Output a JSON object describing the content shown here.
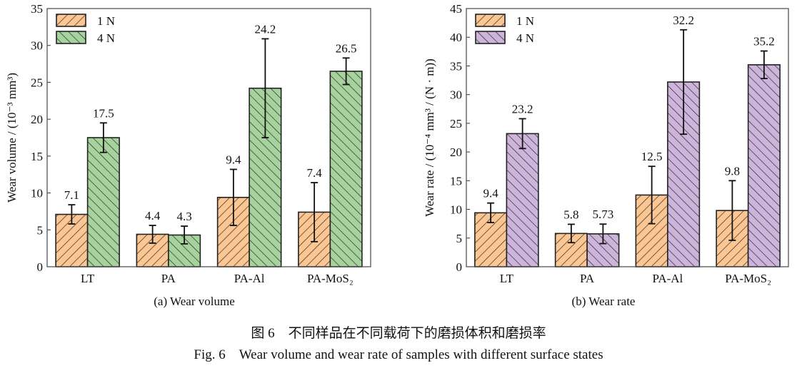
{
  "chart_data": [
    {
      "type": "bar",
      "title": "(a) Wear volume",
      "ylabel": "Wear volume / (10⁻³ mm³)",
      "xlabel": "",
      "ylim": [
        0,
        35
      ],
      "yticks": [
        0,
        5,
        10,
        15,
        20,
        25,
        30,
        35
      ],
      "categories": [
        "LT",
        "PA",
        "PA-Al",
        "PA-MoS₂"
      ],
      "legend_position": "top-left",
      "grid": false,
      "series": [
        {
          "name": "1 N",
          "color": "#fcc693",
          "hatch": "forward",
          "values": [
            7.1,
            4.4,
            9.4,
            7.4
          ],
          "labels": [
            "7.1",
            "4.4",
            "9.4",
            "7.4"
          ],
          "errors": [
            1.3,
            1.2,
            3.8,
            4.0
          ]
        },
        {
          "name": "4 N",
          "color": "#a6d39d",
          "hatch": "backward",
          "values": [
            17.5,
            4.3,
            24.2,
            26.5
          ],
          "labels": [
            "17.5",
            "4.3",
            "24.2",
            "26.5"
          ],
          "errors": [
            2.0,
            1.2,
            6.7,
            1.8
          ]
        }
      ]
    },
    {
      "type": "bar",
      "title": "(b) Wear rate",
      "ylabel": "Wear rate / (10⁻⁴ mm³ / (N · m))",
      "xlabel": "",
      "ylim": [
        0,
        45
      ],
      "yticks": [
        0,
        5,
        10,
        15,
        20,
        25,
        30,
        35,
        40,
        45
      ],
      "categories": [
        "LT",
        "PA",
        "PA-Al",
        "PA-MoS₂"
      ],
      "legend_position": "top-left",
      "grid": false,
      "series": [
        {
          "name": "1 N",
          "color": "#fcc693",
          "hatch": "forward",
          "values": [
            9.4,
            5.8,
            12.5,
            9.8
          ],
          "labels": [
            "9.4",
            "5.8",
            "12.5",
            "9.8"
          ],
          "errors": [
            1.7,
            1.6,
            5.0,
            5.2
          ]
        },
        {
          "name": "4 N",
          "color": "#cdb4da",
          "hatch": "backward",
          "values": [
            23.2,
            5.73,
            32.2,
            35.2
          ],
          "labels": [
            "23.2",
            "5.73",
            "32.2",
            "35.2"
          ],
          "errors": [
            2.6,
            1.7,
            9.1,
            2.4
          ]
        }
      ]
    }
  ],
  "caption": {
    "zh": "图 6　不同样品在不同载荷下的磨损体积和磨损率",
    "en": "Fig. 6　Wear volume and wear rate of samples with different surface states"
  }
}
